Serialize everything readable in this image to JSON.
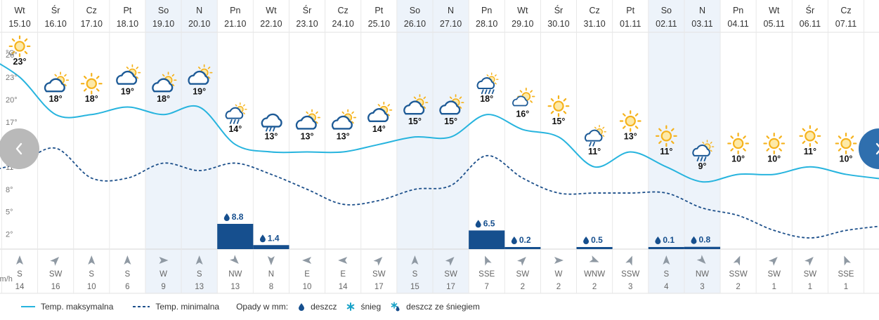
{
  "chart_data": {
    "type": "line",
    "title": "",
    "days": [
      {
        "dow": "Wt",
        "date": "15.10",
        "weekend": false,
        "icon": "sun-icon",
        "max": 23,
        "min": 11.5,
        "precip": null,
        "wind_dir": "S",
        "wind_speed": 14
      },
      {
        "dow": "Śr",
        "date": "16.10",
        "weekend": false,
        "icon": "cloud-sun-icon",
        "max": 18,
        "min": 13.5,
        "precip": null,
        "wind_dir": "SW",
        "wind_speed": 16
      },
      {
        "dow": "Cz",
        "date": "17.10",
        "weekend": false,
        "icon": "sun-icon",
        "max": 18,
        "min": 9.5,
        "precip": null,
        "wind_dir": "S",
        "wind_speed": 10
      },
      {
        "dow": "Pt",
        "date": "18.10",
        "weekend": false,
        "icon": "cloud-sun-icon",
        "max": 19,
        "min": 9.5,
        "precip": null,
        "wind_dir": "S",
        "wind_speed": 6
      },
      {
        "dow": "So",
        "date": "19.10",
        "weekend": true,
        "icon": "cloud-sun-icon",
        "max": 18,
        "min": 11.5,
        "precip": null,
        "wind_dir": "W",
        "wind_speed": 9
      },
      {
        "dow": "N",
        "date": "20.10",
        "weekend": true,
        "icon": "cloud-sun-icon",
        "max": 19,
        "min": 10.5,
        "precip": null,
        "wind_dir": "S",
        "wind_speed": 13
      },
      {
        "dow": "Pn",
        "date": "21.10",
        "weekend": false,
        "icon": "cloud-sun-rain-icon",
        "max": 14,
        "min": 11.5,
        "precip": 8.8,
        "wind_dir": "NW",
        "wind_speed": 13
      },
      {
        "dow": "Wt",
        "date": "22.10",
        "weekend": false,
        "icon": "cloud-rain-icon",
        "max": 13,
        "min": 10,
        "precip": 1.4,
        "wind_dir": "N",
        "wind_speed": 8
      },
      {
        "dow": "Śr",
        "date": "23.10",
        "weekend": false,
        "icon": "cloud-sun-icon",
        "max": 13,
        "min": 8,
        "precip": null,
        "wind_dir": "E",
        "wind_speed": 10
      },
      {
        "dow": "Cz",
        "date": "24.10",
        "weekend": false,
        "icon": "cloud-sun-icon",
        "max": 13,
        "min": 6,
        "precip": null,
        "wind_dir": "E",
        "wind_speed": 14
      },
      {
        "dow": "Pt",
        "date": "25.10",
        "weekend": false,
        "icon": "cloud-sun-icon",
        "max": 14,
        "min": 6.5,
        "precip": null,
        "wind_dir": "SW",
        "wind_speed": 17
      },
      {
        "dow": "So",
        "date": "26.10",
        "weekend": true,
        "icon": "cloud-sun-icon",
        "max": 15,
        "min": 8,
        "precip": null,
        "wind_dir": "S",
        "wind_speed": 15
      },
      {
        "dow": "N",
        "date": "27.10",
        "weekend": true,
        "icon": "cloud-sun-icon",
        "max": 15,
        "min": 8.5,
        "precip": null,
        "wind_dir": "SW",
        "wind_speed": 17
      },
      {
        "dow": "Pn",
        "date": "28.10",
        "weekend": false,
        "icon": "cloud-sun-heavy-rain-icon",
        "max": 18,
        "min": 12.5,
        "precip": 6.5,
        "wind_dir": "SSE",
        "wind_speed": 7
      },
      {
        "dow": "Wt",
        "date": "29.10",
        "weekend": false,
        "icon": "sun-cloud-icon",
        "max": 16,
        "min": 9.5,
        "precip": 0.2,
        "wind_dir": "SW",
        "wind_speed": 2
      },
      {
        "dow": "Śr",
        "date": "30.10",
        "weekend": false,
        "icon": "sun-icon",
        "max": 15,
        "min": 7.5,
        "precip": null,
        "wind_dir": "W",
        "wind_speed": 2
      },
      {
        "dow": "Cz",
        "date": "31.10",
        "weekend": false,
        "icon": "cloud-sun-drizzle-icon",
        "max": 11,
        "min": 7.5,
        "precip": 0.5,
        "wind_dir": "WNW",
        "wind_speed": 2
      },
      {
        "dow": "Pt",
        "date": "01.11",
        "weekend": false,
        "icon": "sun-icon",
        "max": 13,
        "min": 7.5,
        "precip": null,
        "wind_dir": "SSW",
        "wind_speed": 3
      },
      {
        "dow": "So",
        "date": "02.11",
        "weekend": true,
        "icon": "sun-icon",
        "max": 11,
        "min": 7.5,
        "precip": 0.1,
        "wind_dir": "S",
        "wind_speed": 4
      },
      {
        "dow": "N",
        "date": "03.11",
        "weekend": true,
        "icon": "cloud-sun-rain-icon",
        "max": 9,
        "min": 5.5,
        "precip": 0.8,
        "wind_dir": "NW",
        "wind_speed": 3
      },
      {
        "dow": "Pn",
        "date": "04.11",
        "weekend": false,
        "icon": "sun-icon",
        "max": 10,
        "min": 4.5,
        "precip": null,
        "wind_dir": "SSW",
        "wind_speed": 2
      },
      {
        "dow": "Wt",
        "date": "05.11",
        "weekend": false,
        "icon": "sun-icon",
        "max": 10,
        "min": 2.5,
        "precip": null,
        "wind_dir": "SW",
        "wind_speed": 1
      },
      {
        "dow": "Śr",
        "date": "06.11",
        "weekend": false,
        "icon": "sun-icon",
        "max": 11,
        "min": 1.5,
        "precip": null,
        "wind_dir": "SW",
        "wind_speed": 1
      },
      {
        "dow": "Cz",
        "date": "07.11",
        "weekend": false,
        "icon": "sun-icon",
        "max": 10,
        "min": 2.5,
        "precip": null,
        "wind_dir": "SSE",
        "wind_speed": 1
      }
    ],
    "y_unit": "°C",
    "y_ticks": [
      26,
      23,
      20,
      17,
      14,
      11,
      8,
      5,
      2
    ],
    "ylim": [
      0,
      29
    ],
    "wind_unit": "km/h",
    "series": [
      {
        "name": "Temp. maksymalna",
        "key": "max",
        "style": "solid"
      },
      {
        "name": "Temp. minimalna",
        "key": "min",
        "style": "dashed"
      }
    ]
  },
  "legend": {
    "max_label": "Temp. maksymalna",
    "min_label": "Temp. minimalna",
    "precip_title": "Opady w mm:",
    "rain_label": "deszcz",
    "snow_label": "śnieg",
    "mixed_label": "deszcz ze śniegiem"
  },
  "colors": {
    "max_line": "#27b4de",
    "min_line": "#1c4f8a",
    "precip_bar": "#164f8e",
    "cloud": "#1d5a96",
    "sun": "#f5b21c",
    "weekend_bg": "#edf3fa",
    "grid": "#e8e8e8",
    "arrow": "#8f99a3",
    "nav_prev": "#b9b9b9",
    "nav_next": "#2f6fae"
  }
}
